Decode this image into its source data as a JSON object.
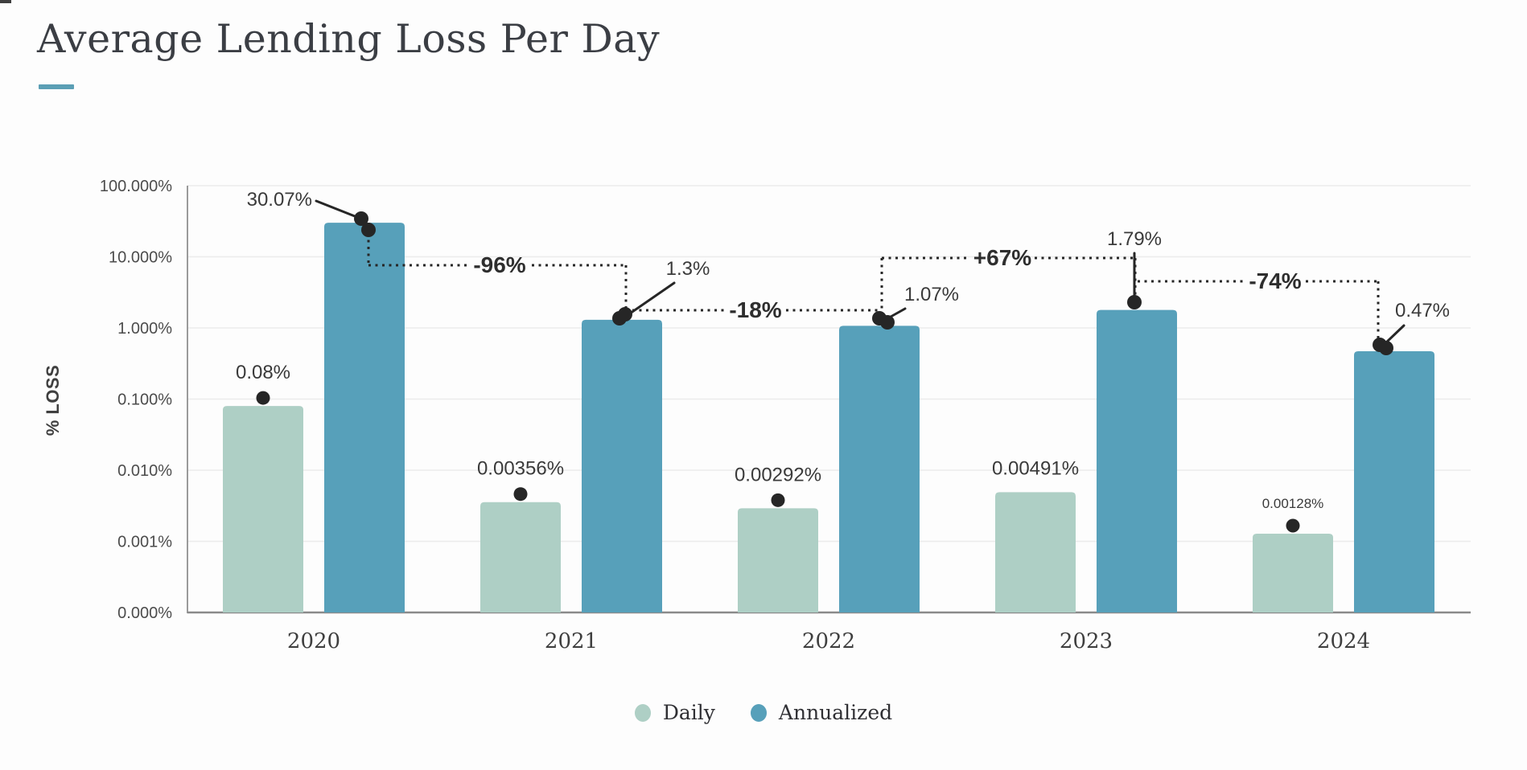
{
  "page": {
    "title": "Average Lending Loss Per Day",
    "background": "#fdfdfd",
    "accent_color": "#5b9fb5"
  },
  "chart_data": {
    "type": "bar",
    "title": "Average Lending Loss Per Day",
    "xlabel": "",
    "ylabel": "% LOSS",
    "y_scale": "log",
    "grid": true,
    "legend_position": "bottom",
    "categories": [
      "2020",
      "2021",
      "2022",
      "2023",
      "2024"
    ],
    "y_ticks": [
      {
        "label": "100.000%",
        "value": 100
      },
      {
        "label": "10.000%",
        "value": 10
      },
      {
        "label": "1.000%",
        "value": 1
      },
      {
        "label": "0.100%",
        "value": 0.1
      },
      {
        "label": "0.010%",
        "value": 0.01
      },
      {
        "label": "0.001%",
        "value": 0.001
      },
      {
        "label": "0.000%",
        "value": 0.0001
      }
    ],
    "series": [
      {
        "name": "Daily",
        "color": "#aecfc5",
        "values": [
          0.08,
          0.00356,
          0.00292,
          0.00491,
          0.00128
        ],
        "labels": [
          "0.08%",
          "0.00356%",
          "0.00292%",
          "0.00491%",
          "0.00128%"
        ]
      },
      {
        "name": "Annualized",
        "color": "#57a0ba",
        "values": [
          30.07,
          1.3,
          1.07,
          1.79,
          0.47
        ],
        "labels": [
          "30.07%",
          "1.3%",
          "1.07%",
          "1.79%",
          "0.47%"
        ]
      }
    ],
    "changes": [
      {
        "from": "2020",
        "to": "2021",
        "label": "-96%"
      },
      {
        "from": "2021",
        "to": "2022",
        "label": "-18%"
      },
      {
        "from": "2022",
        "to": "2023",
        "label": "+67%"
      },
      {
        "from": "2023",
        "to": "2024",
        "label": "-74%"
      }
    ],
    "colors": {
      "dot": "#262626",
      "grid": "#ececec",
      "axis": "#9b9b9b",
      "baseline": "#8a8a8a"
    }
  },
  "legend": {
    "items": [
      {
        "label": "Daily",
        "color": "#aecfc5"
      },
      {
        "label": "Annualized",
        "color": "#57a0ba"
      }
    ]
  }
}
